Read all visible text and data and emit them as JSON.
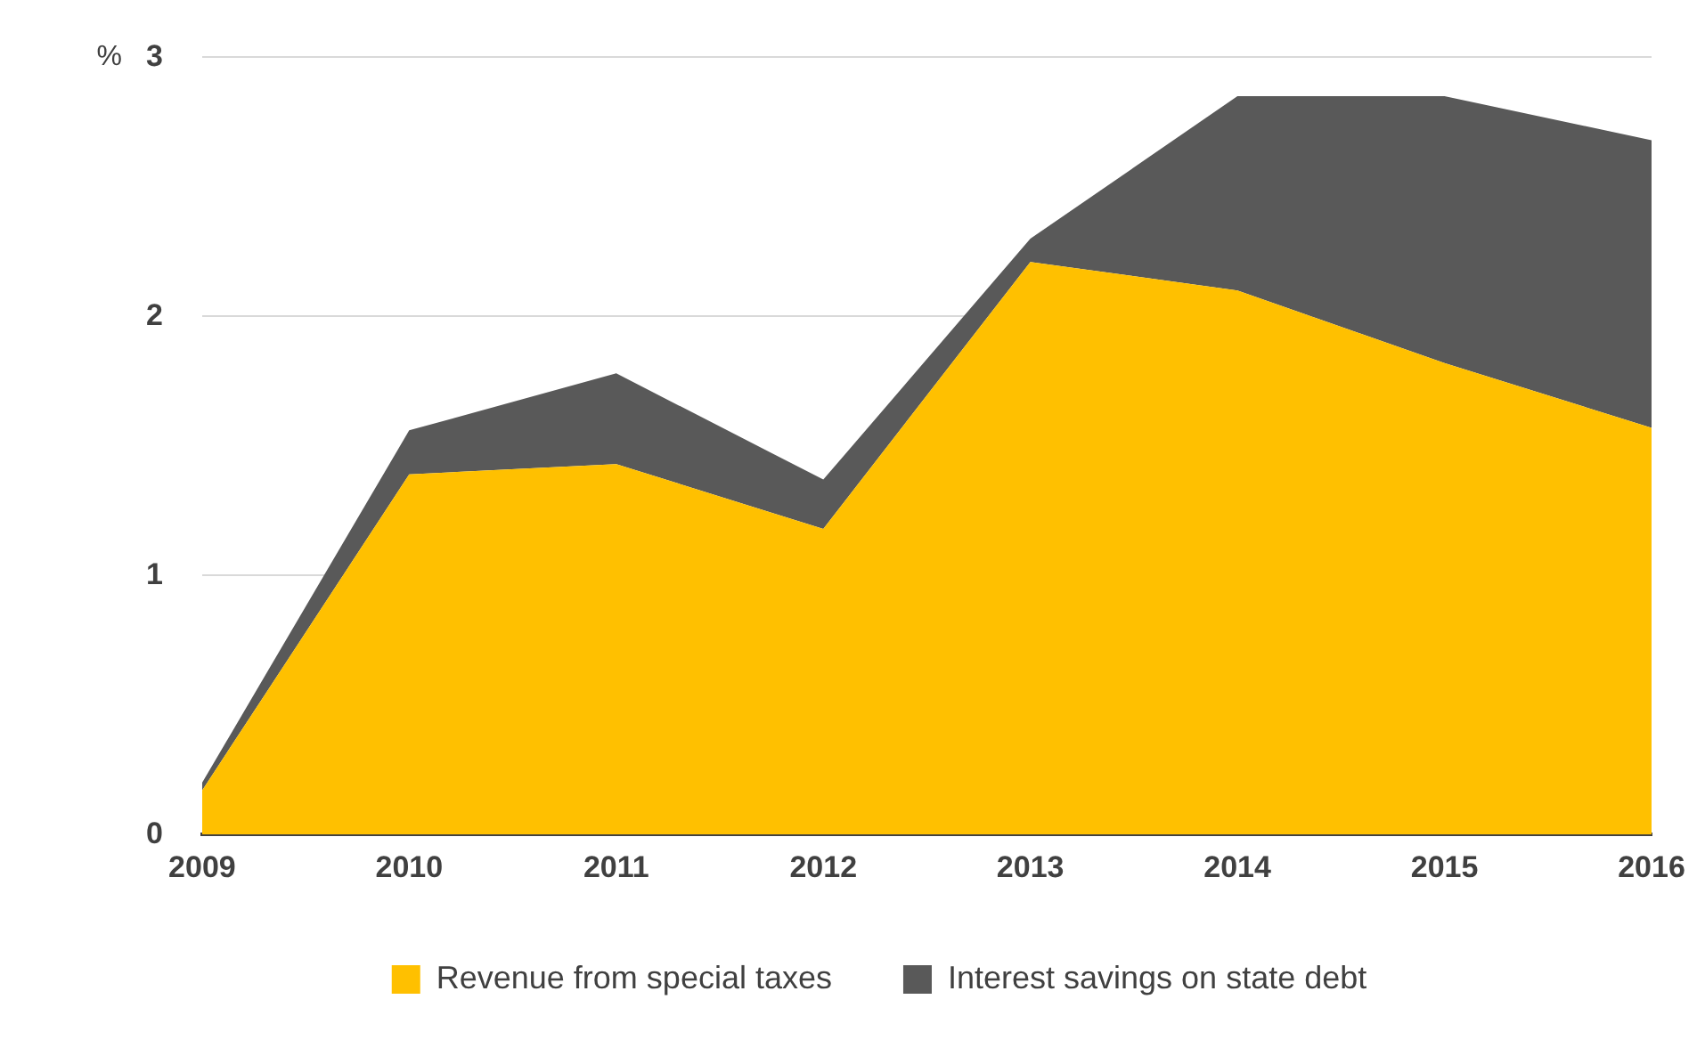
{
  "chart_data": {
    "type": "area",
    "ylabel": "%",
    "stacked": true,
    "categories": [
      "2009",
      "2010",
      "2011",
      "2012",
      "2013",
      "2014",
      "2015",
      "2016"
    ],
    "series": [
      {
        "name": "Revenue from special taxes",
        "color": "#ffc000",
        "values": [
          0.17,
          1.39,
          1.43,
          1.18,
          2.21,
          2.1,
          1.82,
          1.57
        ]
      },
      {
        "name": "Interest savings on state debt",
        "color": "#595959",
        "values": [
          0.03,
          0.17,
          0.35,
          0.19,
          0.09,
          0.75,
          1.03,
          1.11
        ]
      }
    ],
    "ylim": [
      0,
      3
    ],
    "yticks": [
      0,
      1,
      2,
      3
    ],
    "grid": "y",
    "legend": "bottom"
  }
}
